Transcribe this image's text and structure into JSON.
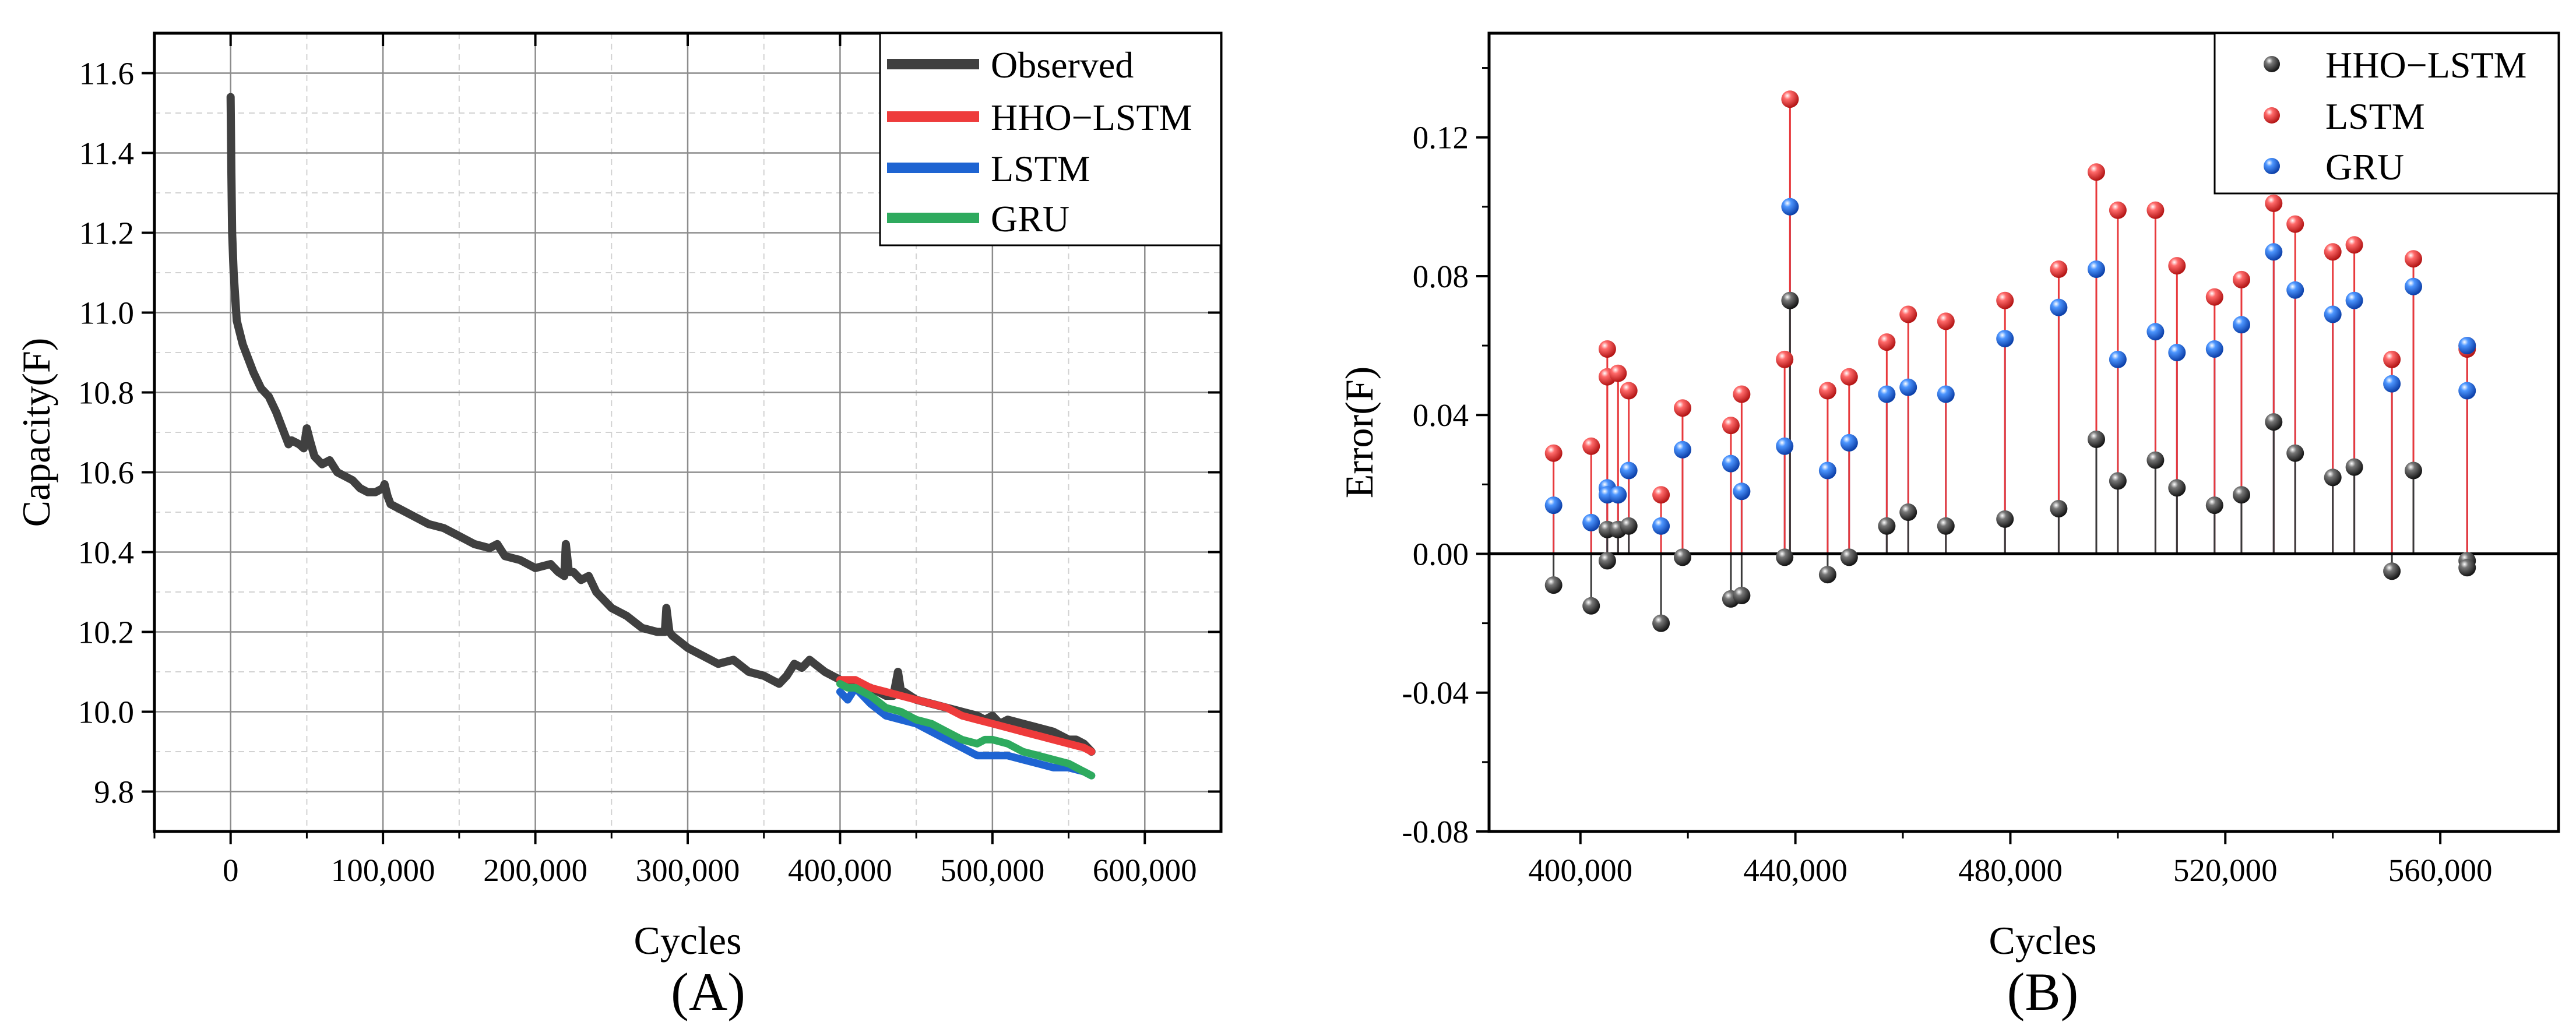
{
  "chart_data": [
    {
      "panel": "(A)",
      "type": "line",
      "xlabel": "Cycles",
      "ylabel": "Capacity(F)",
      "xlim": [
        -50000,
        650000
      ],
      "ylim": [
        9.7,
        11.7
      ],
      "xticks": [
        0,
        100000,
        200000,
        300000,
        400000,
        500000,
        600000
      ],
      "xtick_labels": [
        "0",
        "100,000",
        "200,000",
        "300,000",
        "400,000",
        "500,000",
        "600,000"
      ],
      "yticks": [
        9.8,
        10.0,
        10.2,
        10.4,
        10.6,
        10.8,
        11.0,
        11.2,
        11.4,
        11.6
      ],
      "ytick_labels": [
        "9.8",
        "10.0",
        "10.2",
        "10.4",
        "10.6",
        "10.8",
        "11.0",
        "11.2",
        "11.4",
        "11.6"
      ],
      "grid": true,
      "legend_position": "top-right",
      "series": [
        {
          "name": "Observed",
          "color": "#404040",
          "x": [
            0,
            500,
            1000,
            2000,
            4000,
            8000,
            12000,
            15000,
            20000,
            25000,
            30000,
            35000,
            38000,
            40000,
            45000,
            48000,
            50000,
            52000,
            55000,
            60000,
            65000,
            70000,
            75000,
            80000,
            85000,
            90000,
            95000,
            100000,
            101000,
            103000,
            105000,
            110000,
            120000,
            130000,
            140000,
            150000,
            160000,
            170000,
            175000,
            180000,
            190000,
            200000,
            210000,
            215000,
            219000,
            220000,
            222000,
            225000,
            230000,
            235000,
            240000,
            250000,
            260000,
            270000,
            280000,
            285000,
            286000,
            288000,
            290000,
            300000,
            310000,
            320000,
            330000,
            340000,
            350000,
            355000,
            360000,
            365000,
            370000,
            375000,
            380000,
            390000,
            400000,
            410000,
            420000,
            430000,
            435000,
            438000,
            440000,
            442000,
            450000,
            460000,
            470000,
            480000,
            490000,
            495000,
            500000,
            505000,
            510000,
            520000,
            530000,
            540000,
            550000,
            555000,
            560000,
            565000
          ],
          "y": [
            11.54,
            11.35,
            11.2,
            11.1,
            10.98,
            10.92,
            10.88,
            10.85,
            10.81,
            10.79,
            10.75,
            10.7,
            10.67,
            10.68,
            10.67,
            10.66,
            10.71,
            10.68,
            10.64,
            10.62,
            10.63,
            10.6,
            10.59,
            10.58,
            10.56,
            10.55,
            10.55,
            10.56,
            10.57,
            10.54,
            10.52,
            10.51,
            10.49,
            10.47,
            10.46,
            10.44,
            10.42,
            10.41,
            10.42,
            10.39,
            10.38,
            10.36,
            10.37,
            10.35,
            10.34,
            10.42,
            10.35,
            10.35,
            10.33,
            10.34,
            10.3,
            10.26,
            10.24,
            10.21,
            10.2,
            10.2,
            10.26,
            10.2,
            10.19,
            10.16,
            10.14,
            10.12,
            10.13,
            10.1,
            10.09,
            10.08,
            10.07,
            10.09,
            10.12,
            10.11,
            10.13,
            10.1,
            10.08,
            10.07,
            10.06,
            10.04,
            10.04,
            10.1,
            10.05,
            10.05,
            10.03,
            10.02,
            10.01,
            10.0,
            9.99,
            9.98,
            9.99,
            9.97,
            9.98,
            9.97,
            9.96,
            9.95,
            9.93,
            9.93,
            9.92,
            9.9
          ]
        },
        {
          "name": "HHO−LSTM",
          "color": "#ee3b3b",
          "x": [
            400000,
            410000,
            420000,
            430000,
            440000,
            450000,
            460000,
            470000,
            480000,
            490000,
            500000,
            510000,
            520000,
            530000,
            540000,
            550000,
            560000,
            565000
          ],
          "y": [
            10.08,
            10.08,
            10.06,
            10.05,
            10.04,
            10.03,
            10.02,
            10.01,
            9.99,
            9.98,
            9.97,
            9.96,
            9.95,
            9.94,
            9.93,
            9.92,
            9.91,
            9.9
          ]
        },
        {
          "name": "LSTM",
          "color": "#1e64d2",
          "x": [
            400000,
            405000,
            410000,
            420000,
            430000,
            440000,
            450000,
            460000,
            470000,
            480000,
            490000,
            495000,
            500000,
            510000,
            520000,
            530000,
            540000,
            550000,
            560000,
            565000
          ],
          "y": [
            10.05,
            10.03,
            10.06,
            10.02,
            9.99,
            9.98,
            9.97,
            9.95,
            9.93,
            9.91,
            9.89,
            9.89,
            9.89,
            9.89,
            9.88,
            9.87,
            9.86,
            9.86,
            9.85,
            9.84
          ]
        },
        {
          "name": "GRU",
          "color": "#2eaa5e",
          "x": [
            400000,
            405000,
            410000,
            420000,
            430000,
            440000,
            450000,
            460000,
            470000,
            480000,
            490000,
            495000,
            500000,
            510000,
            520000,
            530000,
            540000,
            550000,
            560000,
            565000
          ],
          "y": [
            10.07,
            10.06,
            10.06,
            10.04,
            10.01,
            10.0,
            9.98,
            9.97,
            9.95,
            9.93,
            9.92,
            9.93,
            9.93,
            9.92,
            9.9,
            9.89,
            9.88,
            9.87,
            9.85,
            9.84
          ]
        }
      ]
    },
    {
      "panel": "(B)",
      "type": "scatter",
      "style": "stem",
      "xlabel": "Cycles",
      "ylabel": "Error(F)",
      "xlim": [
        383000,
        582000
      ],
      "ylim": [
        -0.08,
        0.15
      ],
      "xticks": [
        400000,
        440000,
        480000,
        520000,
        560000
      ],
      "xtick_labels": [
        "400,000",
        "440,000",
        "480,000",
        "520,000",
        "560,000"
      ],
      "yticks": [
        -0.08,
        -0.04,
        0.0,
        0.04,
        0.08,
        0.12
      ],
      "ytick_labels": [
        "-0.08",
        "-0.04",
        "0.00",
        "0.04",
        "0.08",
        "0.12"
      ],
      "grid": false,
      "zero_line": true,
      "legend_position": "top-right",
      "x": [
        395000,
        402000,
        405000,
        405000,
        407000,
        409000,
        415000,
        419000,
        428000,
        430000,
        438000,
        439000,
        446000,
        450000,
        457000,
        461000,
        468000,
        479000,
        489000,
        496000,
        500000,
        507000,
        511000,
        518000,
        523000,
        529000,
        533000,
        540000,
        544000,
        551000,
        555000,
        565000,
        565000
      ],
      "series": [
        {
          "name": "HHO−LSTM",
          "color": "#3a3a3a",
          "values": [
            -0.009,
            -0.015,
            0.007,
            -0.002,
            0.007,
            0.008,
            -0.02,
            -0.001,
            -0.013,
            -0.012,
            -0.001,
            0.073,
            -0.006,
            -0.001,
            0.008,
            0.012,
            0.008,
            0.01,
            0.013,
            0.033,
            0.021,
            0.027,
            0.019,
            0.014,
            0.017,
            0.038,
            0.029,
            0.022,
            0.025,
            -0.005,
            0.024,
            -0.002,
            -0.004
          ]
        },
        {
          "name": "LSTM",
          "color": "#e8393c",
          "values": [
            0.029,
            0.031,
            0.059,
            0.051,
            0.052,
            0.047,
            0.017,
            0.042,
            0.037,
            0.046,
            0.056,
            0.131,
            0.047,
            0.051,
            0.061,
            0.069,
            0.067,
            0.073,
            0.082,
            0.11,
            0.099,
            0.099,
            0.083,
            0.074,
            0.079,
            0.101,
            0.095,
            0.087,
            0.089,
            0.056,
            0.085,
            0.059,
            0.06
          ]
        },
        {
          "name": "GRU",
          "color": "#1f6fe0",
          "values": [
            0.014,
            0.009,
            0.019,
            0.017,
            0.017,
            0.024,
            0.008,
            0.03,
            0.026,
            0.018,
            0.031,
            0.1,
            0.024,
            0.032,
            0.046,
            0.048,
            0.046,
            0.062,
            0.071,
            0.082,
            0.056,
            0.064,
            0.058,
            0.059,
            0.066,
            0.087,
            0.076,
            0.069,
            0.073,
            0.049,
            0.077,
            0.047,
            0.06
          ]
        }
      ]
    }
  ]
}
